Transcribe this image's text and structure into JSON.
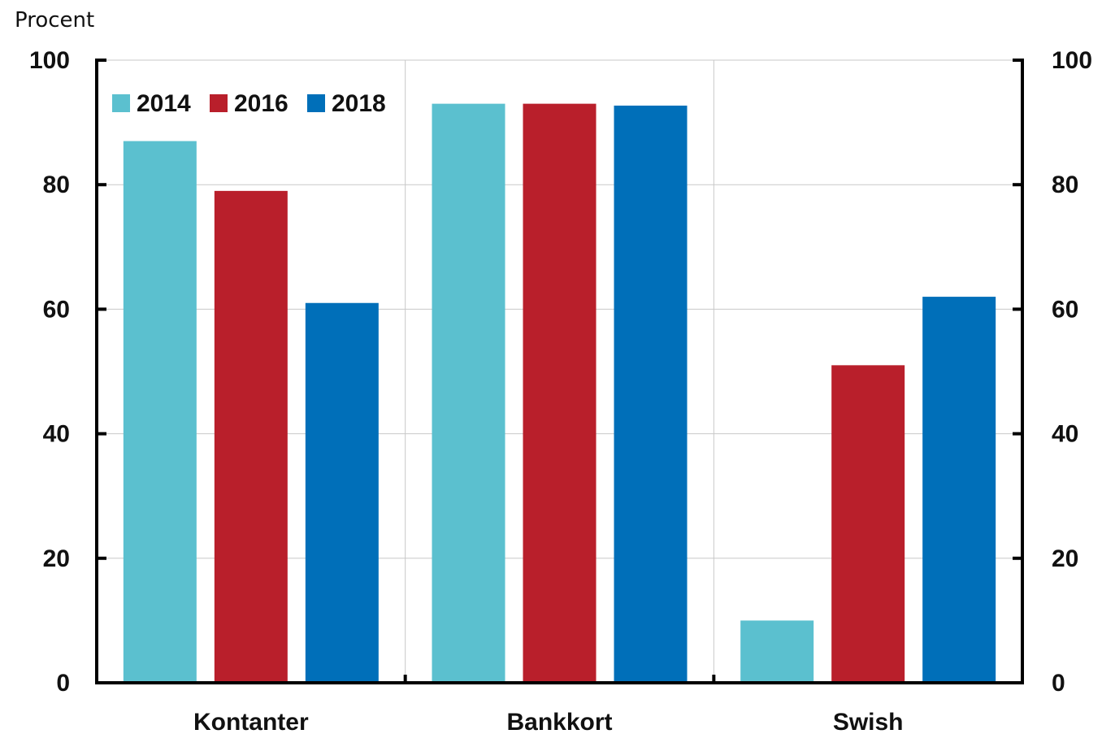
{
  "chart_data": {
    "type": "bar",
    "unit_label": "Procent",
    "categories": [
      "Kontanter",
      "Bankkort",
      "Swish"
    ],
    "series": [
      {
        "name": "2014",
        "color": "#5bc0cf",
        "values": [
          87,
          93,
          10
        ]
      },
      {
        "name": "2016",
        "color": "#b91f2b",
        "values": [
          79,
          93,
          51
        ]
      },
      {
        "name": "2018",
        "color": "#006fb9",
        "values": [
          61,
          92.7,
          62
        ]
      }
    ],
    "ylim": [
      0,
      100
    ],
    "y_ticks": [
      0,
      20,
      40,
      60,
      80,
      100
    ],
    "y_tick_labels": [
      "0",
      "20",
      "40",
      "60",
      "80",
      "100"
    ],
    "right_axis_ticks": [
      0,
      20,
      40,
      60,
      80,
      100
    ],
    "right_axis_tick_labels": [
      "0",
      "20",
      "40",
      "60",
      "80",
      "100"
    ],
    "grid": true,
    "legend_position": "top-left"
  }
}
